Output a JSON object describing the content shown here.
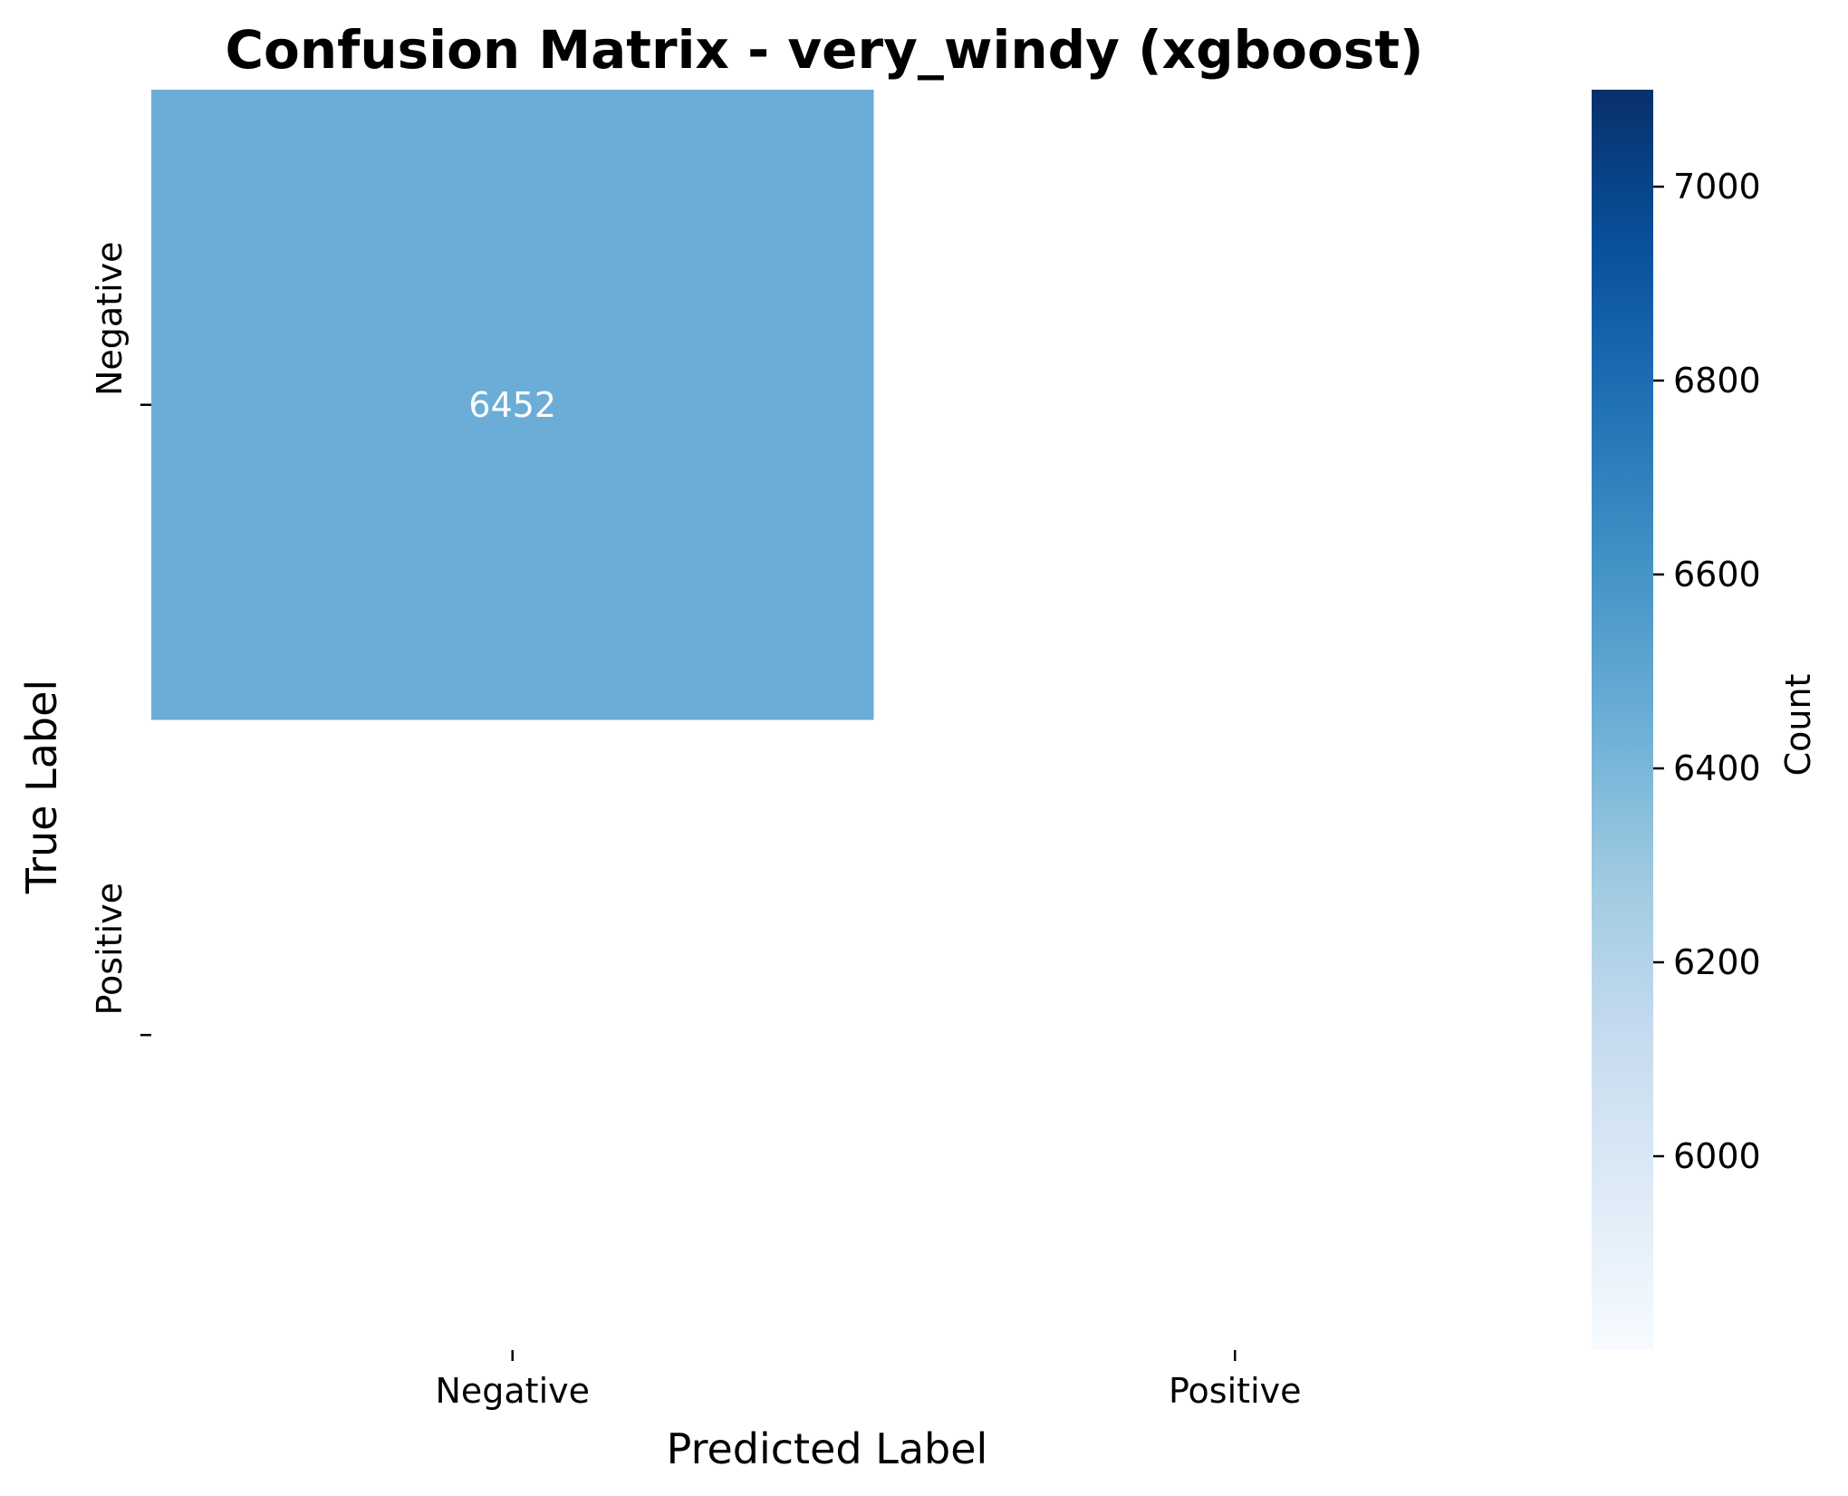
{
  "chart_data": {
    "type": "heatmap",
    "title": "Confusion Matrix - very_windy (xgboost)",
    "xlabel": "Predicted Label",
    "ylabel": "True Label",
    "x_categories": [
      "Negative",
      "Positive"
    ],
    "y_categories": [
      "Negative",
      "Positive"
    ],
    "cells": [
      {
        "row": 0,
        "col": 0,
        "value": 6452,
        "label": "6452"
      }
    ],
    "colormap": "Blues",
    "colorbar": {
      "label": "Count",
      "range": [
        5800,
        7100
      ],
      "ticks": [
        6000,
        6200,
        6400,
        6600,
        6800,
        7000
      ],
      "tick_labels": [
        "6000",
        "6200",
        "6400",
        "6600",
        "6800",
        "7000"
      ]
    },
    "colors": {
      "cell": "#6badd6",
      "cmap_stops": [
        "#f7fbff",
        "#deebf7",
        "#c6dbef",
        "#9ecae1",
        "#6baed6",
        "#4292c6",
        "#2171b5",
        "#08519c",
        "#08306b"
      ]
    }
  }
}
